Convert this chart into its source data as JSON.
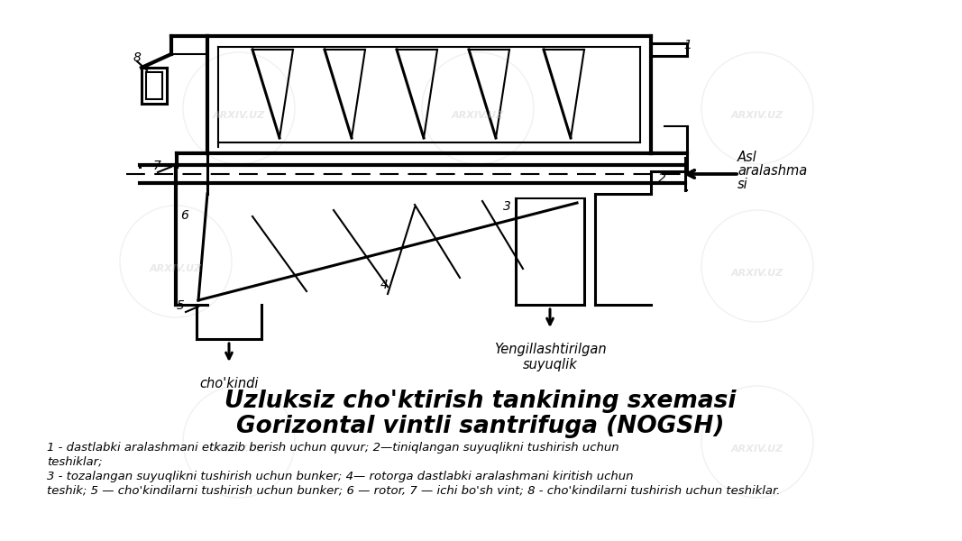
{
  "bg_color": "#ffffff",
  "title_line1": "Uzluksiz cho'ktirish tankining sxemasi",
  "title_line2": "Gorizontal vintli santrifuga (NOGSH)",
  "title_fontsize": 19,
  "desc_line1": "1 - dastlabki aralashmani etkazib berish uchun quvur; 2—tiniqlangan suyuqlikni tushirish uchun",
  "desc_line2": "teshiklar;",
  "desc_line3": "3 - tozalangan suyuqlikni tushirish uchun bunker; 4— rotorga dastlabki aralashmani kiritish uchun",
  "desc_line4": "teshik; 5 — cho'kindilarni tushirish uchun bunker; 6 — rotor, 7 — ichi bo'sh vint; 8 - cho'kindilarni tushirish uchun teshiklar.",
  "label_chokindi": "cho'kindi",
  "label_yengil": "Yengillashtirilgan\nsuyuqlik",
  "label_asl1": "Asl",
  "label_asl2": "aralashma",
  "label_asl3": "si",
  "watermark": "ARXIV.UZ",
  "diagram_color": "#000000",
  "lw": 1.5,
  "lw2": 2.2
}
